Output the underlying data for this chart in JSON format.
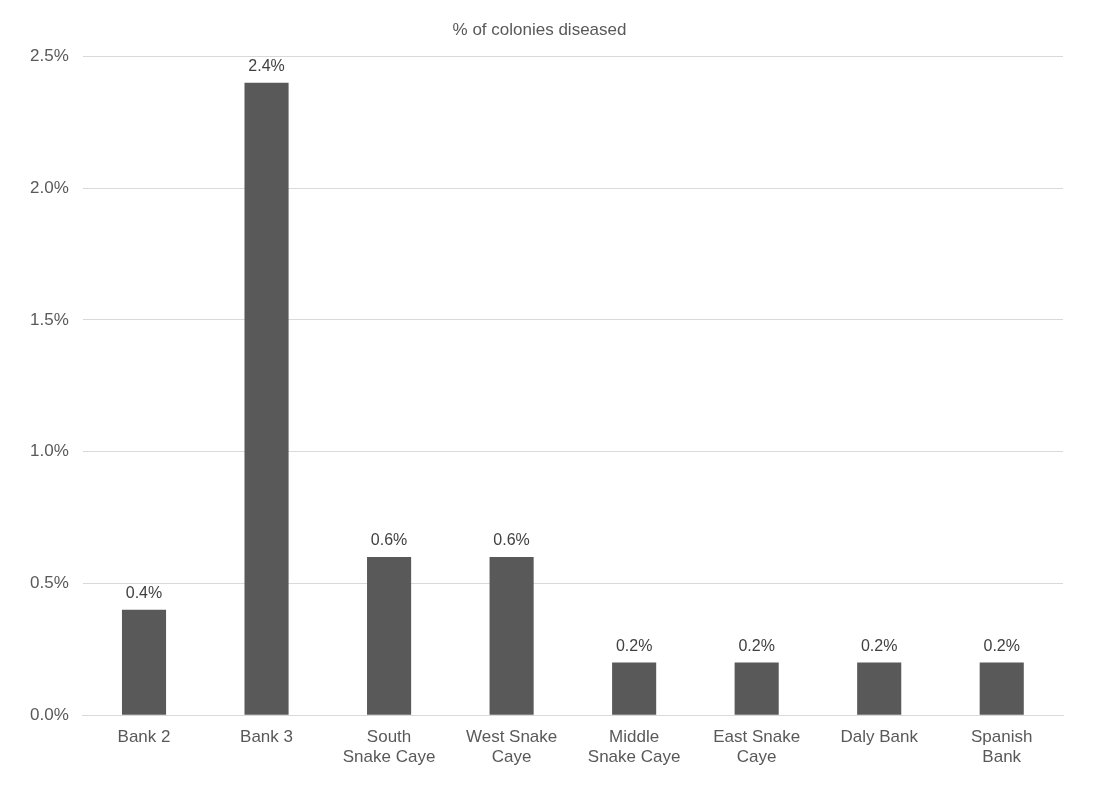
{
  "chart_data": {
    "type": "bar",
    "title": "% of colonies diseased",
    "categories": [
      "Bank 2",
      "Bank 3",
      "South Snake Caye",
      "West Snake Caye",
      "Middle Snake Caye",
      "East Snake Caye",
      "Daly Bank",
      "Spanish Bank"
    ],
    "values": [
      0.4,
      2.4,
      0.6,
      0.6,
      0.2,
      0.2,
      0.2,
      0.2
    ],
    "value_labels": [
      "0.4%",
      "2.4%",
      "0.6%",
      "0.6%",
      "0.2%",
      "0.2%",
      "0.2%",
      "0.2%"
    ],
    "color": "#595959",
    "ylim": [
      0,
      2.5
    ],
    "yticks": [
      {
        "value": 0,
        "label": "0.0%"
      },
      {
        "value": 0.5,
        "label": "0.5%"
      },
      {
        "value": 1,
        "label": "1.0%"
      },
      {
        "value": 1.5,
        "label": "1.5%"
      },
      {
        "value": 2,
        "label": "2.0%"
      },
      {
        "value": 2.5,
        "label": "2.5%"
      }
    ],
    "grid": "y",
    "legend": false
  }
}
